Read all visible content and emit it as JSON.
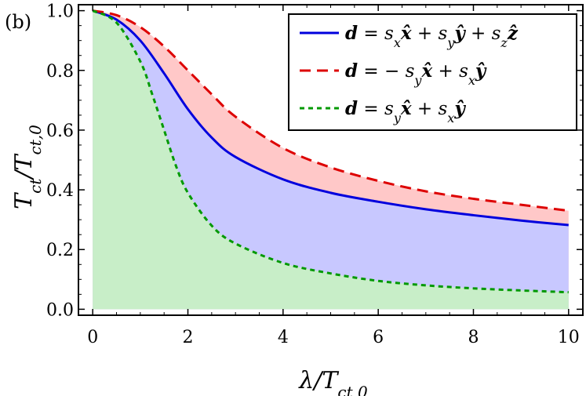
{
  "chart_data": {
    "type": "line",
    "panel_label": "(b)",
    "xlabel": "λ/T_{ct,0}",
    "ylabel": "T_{ct}/T_{ct,0}",
    "xlim": [
      -0.3,
      10.3
    ],
    "ylim": [
      -0.02,
      1.02
    ],
    "x_ticks": [
      0,
      2,
      4,
      6,
      8,
      10
    ],
    "y_ticks": [
      0.0,
      0.2,
      0.4,
      0.6,
      0.8,
      1.0
    ],
    "x_tick_labels": [
      "0",
      "2",
      "4",
      "6",
      "8",
      "10"
    ],
    "y_tick_labels": [
      "0.0",
      "0.2",
      "0.4",
      "0.6",
      "0.8",
      "1.0"
    ],
    "legend_position": "top-right",
    "series": [
      {
        "name": "d = s_x x̂ + s_y ŷ + s_z ẑ",
        "style": "solid",
        "color": "#0000dd",
        "fill": "#c8c8ff",
        "x": [
          0,
          0.5,
          1.0,
          1.5,
          2.0,
          2.5,
          3.0,
          4.0,
          5.0,
          6.0,
          7.0,
          8.0,
          9.0,
          10.0
        ],
        "y": [
          1.0,
          0.97,
          0.9,
          0.79,
          0.67,
          0.575,
          0.51,
          0.435,
          0.39,
          0.36,
          0.335,
          0.315,
          0.297,
          0.282
        ]
      },
      {
        "name": "d = −s_y x̂ + s_x ŷ",
        "style": "dashed",
        "color": "#dd0000",
        "fill": "#ffc8c8",
        "x": [
          0,
          0.5,
          1.0,
          1.5,
          2.0,
          2.5,
          3.0,
          4.0,
          5.0,
          6.0,
          7.0,
          8.0,
          9.0,
          10.0
        ],
        "y": [
          1.0,
          0.985,
          0.945,
          0.88,
          0.8,
          0.72,
          0.645,
          0.54,
          0.475,
          0.43,
          0.395,
          0.37,
          0.35,
          0.33
        ]
      },
      {
        "name": "d = s_y x̂ + s_x ŷ",
        "style": "dotted",
        "color": "#009900",
        "fill": "#c8eec8",
        "x": [
          0,
          0.5,
          1.0,
          1.25,
          1.5,
          1.75,
          2.0,
          2.5,
          3.0,
          4.0,
          5.0,
          6.0,
          7.0,
          8.0,
          9.0,
          10.0
        ],
        "y": [
          1.0,
          0.96,
          0.83,
          0.72,
          0.6,
          0.48,
          0.39,
          0.28,
          0.22,
          0.155,
          0.12,
          0.095,
          0.08,
          0.07,
          0.063,
          0.057
        ]
      }
    ],
    "legend_entries": [
      {
        "lhs": "d",
        "rhs": [
          [
            "s",
            "x",
            "x̂"
          ],
          [
            "+"
          ],
          [
            "s",
            "y",
            "ŷ"
          ],
          [
            "+"
          ],
          [
            "s",
            "z",
            "ẑ"
          ]
        ]
      },
      {
        "lhs": "d",
        "rhs": [
          [
            "−"
          ],
          [
            "s",
            "y",
            "x̂"
          ],
          [
            "+"
          ],
          [
            "s",
            "x",
            "ŷ"
          ]
        ]
      },
      {
        "lhs": "d",
        "rhs": [
          [
            "s",
            "y",
            "x̂"
          ],
          [
            "+"
          ],
          [
            "s",
            "x",
            "ŷ"
          ]
        ]
      }
    ]
  }
}
